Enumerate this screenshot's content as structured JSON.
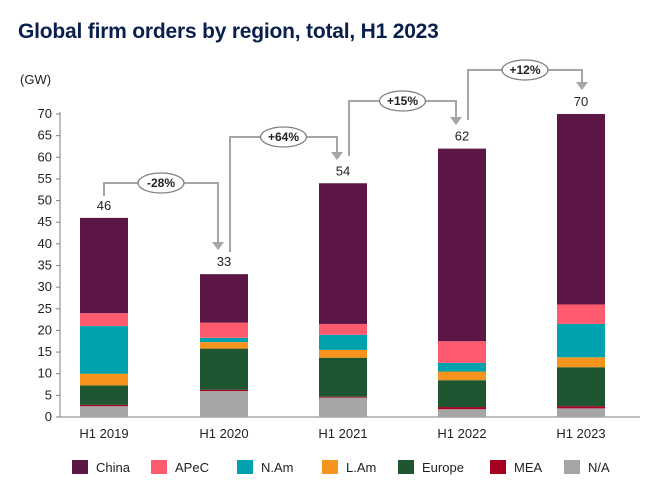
{
  "chart_data": {
    "type": "bar",
    "stacked": true,
    "title": "Global firm orders by region, total, H1 2023",
    "ylabel": "(GW)",
    "xlabel": "",
    "ylim": [
      0,
      70
    ],
    "yticks": [
      0,
      5,
      10,
      15,
      20,
      25,
      30,
      35,
      40,
      45,
      50,
      55,
      60,
      65,
      70
    ],
    "grid": false,
    "legend_position": "bottom",
    "categories": [
      "H1 2019",
      "H1 2020",
      "H1 2021",
      "H1 2022",
      "H1 2023"
    ],
    "totals": [
      46,
      33,
      54,
      62,
      70
    ],
    "series": [
      {
        "name": "N/A",
        "color": "#a6a6a6",
        "values": [
          2.5,
          6.0,
          4.5,
          1.8,
          2.0
        ]
      },
      {
        "name": "MEA",
        "color": "#a50021",
        "values": [
          0.3,
          0.3,
          0.2,
          0.5,
          0.5
        ]
      },
      {
        "name": "Europe",
        "color": "#1e5631",
        "values": [
          4.5,
          9.5,
          9.0,
          6.2,
          9.0
        ]
      },
      {
        "name": "L.Am",
        "color": "#f7941d",
        "values": [
          2.7,
          1.5,
          1.8,
          2.0,
          2.3
        ]
      },
      {
        "name": "N.Am",
        "color": "#00a3ad",
        "values": [
          11.0,
          1.0,
          3.5,
          2.0,
          7.7
        ]
      },
      {
        "name": "APeC",
        "color": "#ff5a6e",
        "values": [
          3.0,
          3.5,
          2.5,
          5.0,
          4.5
        ]
      },
      {
        "name": "China",
        "color": "#5b1645",
        "values": [
          22.0,
          11.2,
          32.5,
          44.5,
          44.0
        ]
      }
    ],
    "legend_order": [
      "China",
      "APeC",
      "N.Am",
      "L.Am",
      "Europe",
      "MEA",
      "N/A"
    ],
    "growth_annotations": [
      {
        "from": 0,
        "to": 1,
        "label": "-28%"
      },
      {
        "from": 1,
        "to": 2,
        "label": "+64%"
      },
      {
        "from": 2,
        "to": 3,
        "label": "+15%"
      },
      {
        "from": 3,
        "to": 4,
        "label": "+12%"
      }
    ]
  }
}
